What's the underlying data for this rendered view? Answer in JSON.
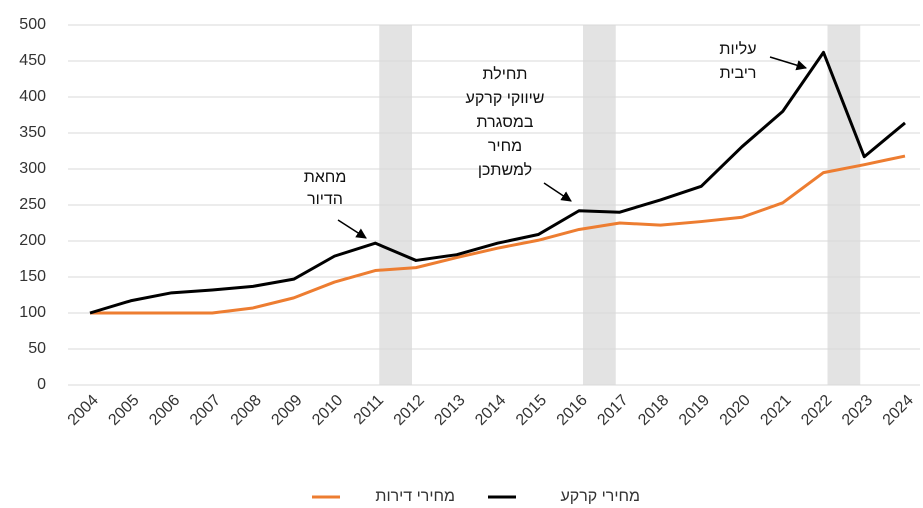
{
  "chart_data": {
    "type": "line",
    "categories": [
      "2004",
      "2005",
      "2006",
      "2007",
      "2008",
      "2009",
      "2010",
      "2011",
      "2012",
      "2013",
      "2014",
      "2015",
      "2016",
      "2017",
      "2018",
      "2019",
      "2020",
      "2021",
      "2022",
      "2023",
      "2024"
    ],
    "series": [
      {
        "name": "מחירי קרקע",
        "color": "#000000",
        "values": [
          100,
          117,
          128,
          132,
          137,
          147,
          179,
          197,
          173,
          181,
          197,
          209,
          242,
          240,
          257,
          276,
          331,
          380,
          462,
          317,
          364
        ]
      },
      {
        "name": "מחירי דירות",
        "color": "#ed7d31",
        "values": [
          100,
          100,
          100,
          100,
          107,
          121,
          143,
          159,
          163,
          177,
          190,
          201,
          216,
          225,
          222,
          227,
          233,
          253,
          295,
          306,
          318
        ]
      }
    ],
    "ylim": [
      0,
      500
    ],
    "yticks": [
      0,
      50,
      100,
      150,
      200,
      250,
      300,
      350,
      400,
      450,
      500
    ],
    "grid": true,
    "shaded_periods": [
      [
        "2011",
        "2012"
      ],
      [
        "2016",
        "2017"
      ],
      [
        "2022",
        "2023"
      ]
    ],
    "annotations": [
      {
        "lines": [
          "מחאת",
          "הדיור"
        ]
      },
      {
        "lines": [
          "תחילת",
          "שיווקי קרקע",
          "במסגרת",
          "מחיר",
          "למשתכן"
        ]
      },
      {
        "lines": [
          "עליות",
          "ריבית"
        ]
      }
    ]
  }
}
